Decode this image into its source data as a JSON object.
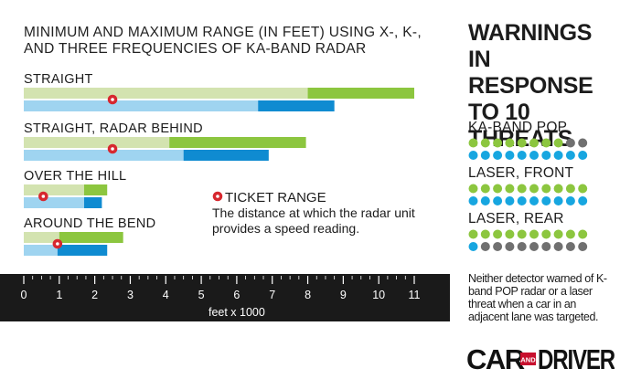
{
  "title": "MINIMUM AND MAXIMUM RANGE (IN FEET) USING X-, K-, AND THREE FREQUENCIES OF KA-BAND RADAR",
  "legend": {
    "title": "TICKET RANGE",
    "description": "The distance at which the radar unit provides a speed reading.",
    "marker_color": "#d7282f"
  },
  "chart_data": {
    "type": "bar",
    "xlabel": "feet x 1000",
    "xlim": [
      0,
      11
    ],
    "ticks": [
      "0",
      "1",
      "2",
      "3",
      "4",
      "5",
      "6",
      "7",
      "8",
      "9",
      "10",
      "11"
    ],
    "colors": {
      "green_light": "#d3e3b0",
      "green_dark": "#8cc63f",
      "blue_light": "#9fd4f0",
      "blue_dark": "#0f8bd1",
      "axis": "#1a1a1a",
      "marker": "#d7282f"
    },
    "groups": [
      {
        "label": "STRAIGHT",
        "green": [
          8.0,
          11.0
        ],
        "blue": [
          6.6,
          8.75
        ],
        "ticket": 2.5
      },
      {
        "label": "STRAIGHT, RADAR BEHIND",
        "green": [
          4.1,
          7.95
        ],
        "blue": [
          4.5,
          6.9
        ],
        "ticket": 2.5
      },
      {
        "label": "OVER THE HILL",
        "green": [
          1.7,
          2.35
        ],
        "blue": [
          1.7,
          2.2
        ],
        "ticket": 0.55
      },
      {
        "label": "AROUND THE BEND",
        "green": [
          1.0,
          2.8
        ],
        "blue": [
          0.95,
          2.35
        ],
        "ticket": 0.95
      }
    ]
  },
  "warnings": {
    "title": "WARNINGS IN RESPONSE TO 10 THREATS",
    "colors": {
      "green": "#8cc63f",
      "blue": "#17a6e0",
      "gray": "#707070"
    },
    "threats": [
      {
        "label": "KA-BAND POP",
        "green_warned": 8,
        "blue_warned": 10
      },
      {
        "label": "LASER, FRONT",
        "green_warned": 10,
        "blue_warned": 10
      },
      {
        "label": "LASER, REAR",
        "green_warned": 10,
        "blue_warned": 1
      }
    ],
    "footnote": "Neither detector warned of K-band POP radar or a laser threat when a car in an adjacent lane was targeted."
  },
  "logo": {
    "left": "CAR",
    "middle": "AND",
    "right": "DRIVER"
  }
}
